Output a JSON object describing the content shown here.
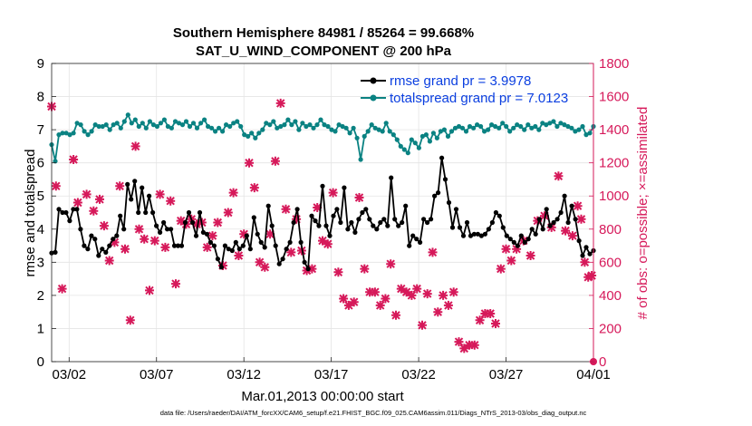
{
  "colors": {
    "rmse": "#000000",
    "spread": "#0a8282",
    "obs": "#d6195a",
    "grid": "#e4e4e4"
  },
  "chart_data": {
    "type": "line",
    "title": [
      "Southern Hemisphere 84981 / 85264 = 99.668%",
      "SAT_U_WIND_COMPONENT @ 200 hPa"
    ],
    "xlabel": "Mar.01,2013 00:00:00 start",
    "ylabel_left": "rmse and totalspread",
    "ylabel_right": "# of obs: o=possible; ×=assimilated",
    "x_tick_labels": [
      "03/02",
      "03/07",
      "03/12",
      "03/17",
      "03/22",
      "03/27",
      "04/01"
    ],
    "x_tick_days": [
      1,
      6,
      11,
      16,
      21,
      26,
      31
    ],
    "xlim_days": [
      0,
      31
    ],
    "y_left_ticks": [
      "0",
      "1",
      "2",
      "3",
      "4",
      "5",
      "6",
      "7",
      "8",
      "9"
    ],
    "ylim_left": [
      0,
      9
    ],
    "y_right_ticks": [
      "0",
      "200",
      "400",
      "600",
      "800",
      "1000",
      "1200",
      "1400",
      "1600",
      "1800"
    ],
    "ylim_right": [
      0,
      1800
    ],
    "grid": true,
    "legend_position": "top-right",
    "series": [
      {
        "name": "rmse grand pr = 3.9978",
        "axis": "left",
        "marker": "circle",
        "values": [
          3.28,
          3.3,
          4.6,
          4.5,
          4.5,
          4.25,
          4.6,
          4.6,
          4.0,
          3.5,
          3.4,
          3.8,
          3.7,
          3.2,
          3.4,
          3.3,
          3.5,
          3.7,
          3.8,
          4.4,
          4.0,
          5.35,
          4.9,
          5.45,
          4.5,
          5.25,
          4.5,
          5.0,
          4.5,
          4.1,
          3.9,
          4.2,
          4.0,
          4.0,
          3.5,
          3.5,
          3.5,
          4.2,
          4.5,
          4.2,
          3.8,
          4.5,
          3.9,
          3.85,
          3.6,
          3.5,
          3.1,
          2.85,
          3.5,
          3.4,
          3.35,
          3.6,
          3.4,
          3.5,
          3.8,
          3.4,
          4.35,
          3.85,
          3.6,
          3.45,
          4.7,
          4.1,
          3.5,
          2.95,
          3.1,
          3.4,
          3.6,
          4.2,
          4.6,
          3.6,
          3.0,
          2.8,
          4.4,
          4.25,
          4.1,
          5.3,
          4.1,
          3.8,
          4.4,
          4.6,
          4.2,
          5.25,
          4.0,
          4.2,
          3.9,
          4.3,
          4.5,
          4.6,
          4.3,
          4.1,
          4.0,
          4.2,
          4.3,
          4.1,
          5.55,
          4.3,
          4.1,
          4.2,
          4.7,
          3.5,
          3.8,
          3.7,
          3.6,
          4.3,
          4.2,
          4.3,
          5.0,
          5.1,
          6.15,
          5.5,
          4.8,
          4.05,
          4.6,
          4.05,
          3.8,
          4.2,
          3.8,
          3.85,
          3.85,
          3.8,
          3.85,
          4.0,
          4.2,
          4.5,
          4.4,
          4.05,
          3.8,
          3.7,
          3.6,
          3.5,
          3.8,
          3.6,
          3.7,
          4.0,
          3.85,
          4.3,
          4.0,
          4.6,
          4.1,
          4.2,
          4.3,
          4.5,
          5.0,
          4.2,
          4.7,
          4.3,
          3.65,
          3.2,
          3.45,
          3.25,
          3.35
        ]
      },
      {
        "name": "totalspread grand pr = 7.0123",
        "axis": "left",
        "marker": "circle",
        "values": [
          6.55,
          6.05,
          6.85,
          6.9,
          6.9,
          6.85,
          6.9,
          7.2,
          7.15,
          6.95,
          6.85,
          6.95,
          7.15,
          7.1,
          7.1,
          7.15,
          7.0,
          7.15,
          7.2,
          7.05,
          7.25,
          7.45,
          7.2,
          7.3,
          7.1,
          7.2,
          7.05,
          7.25,
          7.15,
          7.1,
          7.2,
          7.3,
          7.1,
          7.05,
          7.25,
          7.2,
          7.15,
          7.25,
          7.1,
          7.2,
          7.05,
          7.2,
          7.3,
          7.1,
          7.05,
          6.95,
          7.05,
          6.95,
          7.15,
          7.1,
          7.2,
          7.25,
          7.1,
          6.85,
          6.8,
          6.9,
          6.75,
          6.9,
          7.0,
          7.2,
          7.15,
          7.25,
          7.05,
          7.1,
          7.15,
          7.3,
          7.15,
          7.25,
          7.0,
          7.2,
          7.1,
          7.15,
          7.05,
          7.15,
          7.3,
          7.15,
          7.1,
          7.0,
          6.95,
          7.15,
          7.1,
          7.05,
          6.9,
          7.05,
          6.75,
          6.1,
          6.8,
          6.95,
          7.15,
          7.05,
          7.0,
          6.95,
          7.2,
          6.95,
          6.85,
          6.7,
          6.5,
          6.4,
          6.3,
          6.7,
          6.6,
          6.45,
          6.8,
          6.85,
          6.65,
          6.9,
          6.75,
          6.95,
          7.0,
          6.8,
          6.95,
          7.05,
          7.1,
          7.05,
          6.95,
          7.1,
          7.05,
          7.15,
          7.1,
          6.95,
          7.0,
          7.15,
          7.1,
          7.05,
          7.2,
          7.1,
          6.95,
          7.05,
          7.15,
          7.1,
          7.0,
          7.15,
          7.05,
          7.1,
          7.0,
          7.2,
          7.15,
          7.2,
          7.25,
          7.1,
          7.2,
          7.15,
          7.1,
          7.05,
          6.95,
          7.0,
          7.1,
          6.85,
          6.9,
          7.1
        ]
      },
      {
        "name": "obs possible",
        "axis": "right",
        "marker": "circle",
        "points": [
          [
            31.0,
            0
          ]
        ]
      },
      {
        "name": "obs assimilated",
        "axis": "right",
        "marker": "star",
        "points": [
          [
            0.0,
            1540
          ],
          [
            0.25,
            1060
          ],
          [
            0.6,
            440
          ],
          [
            1.25,
            1220
          ],
          [
            1.5,
            960
          ],
          [
            2.0,
            1010
          ],
          [
            2.4,
            910
          ],
          [
            2.75,
            980
          ],
          [
            3.0,
            820
          ],
          [
            3.3,
            610
          ],
          [
            3.6,
            720
          ],
          [
            3.9,
            1060
          ],
          [
            4.2,
            680
          ],
          [
            4.5,
            250
          ],
          [
            4.8,
            1300
          ],
          [
            5.0,
            800
          ],
          [
            5.3,
            740
          ],
          [
            5.6,
            430
          ],
          [
            5.9,
            730
          ],
          [
            6.2,
            1010
          ],
          [
            6.5,
            690
          ],
          [
            6.8,
            970
          ],
          [
            7.1,
            470
          ],
          [
            7.4,
            850
          ],
          [
            7.7,
            830
          ],
          [
            8.0,
            860
          ],
          [
            8.3,
            830
          ],
          [
            8.6,
            840
          ],
          [
            8.9,
            690
          ],
          [
            9.2,
            760
          ],
          [
            9.5,
            840
          ],
          [
            9.8,
            580
          ],
          [
            10.1,
            900
          ],
          [
            10.4,
            1020
          ],
          [
            10.7,
            640
          ],
          [
            11.0,
            770
          ],
          [
            11.3,
            1200
          ],
          [
            11.6,
            1050
          ],
          [
            11.9,
            600
          ],
          [
            12.2,
            570
          ],
          [
            12.5,
            770
          ],
          [
            12.8,
            1210
          ],
          [
            13.1,
            1560
          ],
          [
            13.4,
            920
          ],
          [
            13.7,
            660
          ],
          [
            14.0,
            860
          ],
          [
            14.3,
            670
          ],
          [
            14.6,
            550
          ],
          [
            14.9,
            560
          ],
          [
            15.2,
            930
          ],
          [
            15.5,
            730
          ],
          [
            15.8,
            710
          ],
          [
            16.1,
            1020
          ],
          [
            16.4,
            540
          ],
          [
            16.7,
            380
          ],
          [
            17.0,
            340
          ],
          [
            17.3,
            360
          ],
          [
            17.6,
            990
          ],
          [
            17.9,
            560
          ],
          [
            18.2,
            420
          ],
          [
            18.5,
            420
          ],
          [
            18.8,
            340
          ],
          [
            19.1,
            380
          ],
          [
            19.4,
            590
          ],
          [
            19.7,
            280
          ],
          [
            20.0,
            440
          ],
          [
            20.3,
            420
          ],
          [
            20.6,
            400
          ],
          [
            20.9,
            440
          ],
          [
            21.2,
            220
          ],
          [
            21.5,
            410
          ],
          [
            21.8,
            660
          ],
          [
            22.1,
            300
          ],
          [
            22.4,
            400
          ],
          [
            22.7,
            340
          ],
          [
            23.0,
            420
          ],
          [
            23.3,
            120
          ],
          [
            23.6,
            80
          ],
          [
            23.9,
            100
          ],
          [
            24.2,
            100
          ],
          [
            24.5,
            250
          ],
          [
            24.8,
            290
          ],
          [
            25.1,
            290
          ],
          [
            25.4,
            230
          ],
          [
            25.7,
            560
          ],
          [
            26.0,
            680
          ],
          [
            26.3,
            610
          ],
          [
            26.6,
            680
          ],
          [
            27.0,
            730
          ],
          [
            27.4,
            640
          ],
          [
            27.8,
            850
          ],
          [
            28.2,
            880
          ],
          [
            28.6,
            810
          ],
          [
            29.0,
            1120
          ],
          [
            29.4,
            790
          ],
          [
            29.8,
            760
          ],
          [
            30.1,
            940
          ],
          [
            30.3,
            860
          ],
          [
            30.5,
            600
          ],
          [
            30.7,
            510
          ],
          [
            30.9,
            520
          ]
        ]
      }
    ]
  },
  "footer_text": "data file: /Users/raeder/DAI/ATM_forcXX/CAM6_setup/f.e21.FHIST_BGC.f09_025.CAM6assim.011/Diags_NTrS_2013-03/obs_diag_output.nc"
}
